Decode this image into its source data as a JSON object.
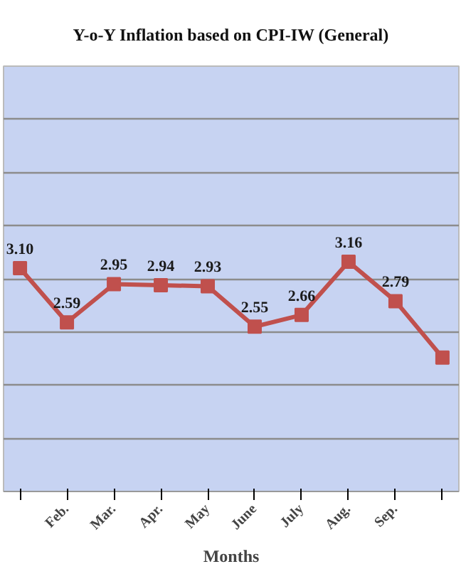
{
  "chart_data": {
    "type": "line",
    "title": "Y-o-Y Inflation based on CPI-IW (General)",
    "xlabel": "Months",
    "categories": [
      null,
      "Feb.",
      "Mar.",
      "Apr.",
      "May",
      "June",
      "July",
      "Aug.",
      "Sep.",
      null
    ],
    "series": [
      {
        "color": "#c0504d",
        "values": [
          3.1,
          2.59,
          2.95,
          2.94,
          2.93,
          2.55,
          2.66,
          3.16,
          2.79,
          2.26
        ],
        "value_labels": [
          "3.10",
          "2.59",
          "2.95",
          "2.94",
          "2.93",
          "2.55",
          "2.66",
          "3.16",
          "2.79",
          null
        ]
      }
    ],
    "ylim": [
      1,
      5
    ],
    "yticks": [
      {
        "value": 1,
        "label": null
      },
      {
        "value": 1.5,
        "label": null
      },
      {
        "value": 2,
        "label": null
      },
      {
        "value": 2.5,
        "label": null
      },
      {
        "value": 3,
        "label": null
      },
      {
        "value": 3.5,
        "label": null
      },
      {
        "value": 4,
        "label": null
      },
      {
        "value": 4.5,
        "label": null
      },
      {
        "value": 5,
        "label": null
      }
    ],
    "grid": "y",
    "marker": "square",
    "line_style": "solid",
    "tick_labels": "x"
  }
}
